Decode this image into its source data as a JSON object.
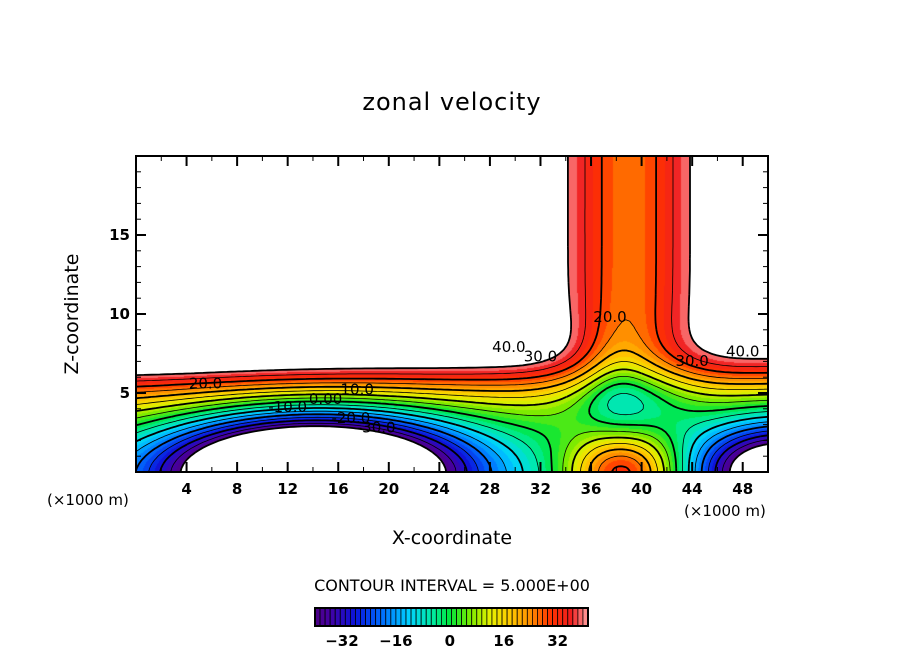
{
  "chart_data": {
    "type": "heatmap",
    "subtype": "filled-contour",
    "title": "zonal velocity",
    "xlabel": "X-coordinate",
    "ylabel": "Z-coordinate",
    "x_unit_label": "(×1000 m)",
    "xlim": [
      0,
      50
    ],
    "ylim": [
      0,
      20
    ],
    "x_ticks": [
      4,
      8,
      12,
      16,
      20,
      24,
      28,
      32,
      36,
      40,
      44,
      48
    ],
    "x_tick_labels": [
      "4",
      "8",
      "12",
      "16",
      "20",
      "24",
      "28",
      "32",
      "36",
      "40",
      "44",
      "48"
    ],
    "y_ticks": [
      5,
      10,
      15
    ],
    "y_tick_labels": [
      "5",
      "10",
      "15"
    ],
    "contour_interval_label": "CONTOUR INTERVAL = 5.000E+00",
    "contour_interval": 5.0,
    "negative_contours": "dashed",
    "contour_labels": [
      {
        "text": "20.0",
        "x": 5.5,
        "z": 5.3
      },
      {
        "text": "10.0",
        "x": 17.5,
        "z": 4.9
      },
      {
        "text": "0.00",
        "x": 15.0,
        "z": 4.3
      },
      {
        "text": "-10.0",
        "x": 12.0,
        "z": 3.8
      },
      {
        "text": "-20.0",
        "x": 17.0,
        "z": 3.1
      },
      {
        "text": "-30.0",
        "x": 19.0,
        "z": 2.5
      },
      {
        "text": "40.0",
        "x": 29.5,
        "z": 7.6
      },
      {
        "text": "30.0",
        "x": 32.0,
        "z": 7.0
      },
      {
        "text": "20.0",
        "x": 37.5,
        "z": 9.5
      },
      {
        "text": "30.0",
        "x": 44.0,
        "z": 6.7
      },
      {
        "text": "40.0",
        "x": 48.0,
        "z": 7.3
      }
    ],
    "colorbar": {
      "range": [
        -40,
        41
      ],
      "ticks": [
        -32,
        -16,
        0,
        16,
        32
      ],
      "tick_labels": [
        "−32",
        "−16",
        "0",
        "16",
        "32"
      ],
      "colormap": "rainbow (purple-blue-cyan-green-yellow-orange-red-pink)"
    },
    "features": [
      {
        "description": "Negative jet core (below -40, blank) near surface",
        "x_range": [
          4,
          24
        ],
        "z_range": [
          0,
          1.3
        ]
      },
      {
        "description": "Strong positive region (above 40, blank) aloft-left",
        "x_range": [
          0,
          33
        ],
        "z_range": [
          7,
          20
        ]
      },
      {
        "description": "Strong positive region (above 40, blank) aloft-right",
        "x_range": [
          45,
          50
        ],
        "z_range": [
          7.5,
          20
        ]
      },
      {
        "description": "Strong positive core (above 40, blank) near surface",
        "x_range": [
          34,
          42
        ],
        "z_range": [
          0,
          1.2
        ]
      },
      {
        "description": "Vertical column of 20-35 between x≈33 and x≈45",
        "x_range": [
          33,
          45
        ],
        "z_range": [
          0,
          20
        ]
      }
    ]
  }
}
